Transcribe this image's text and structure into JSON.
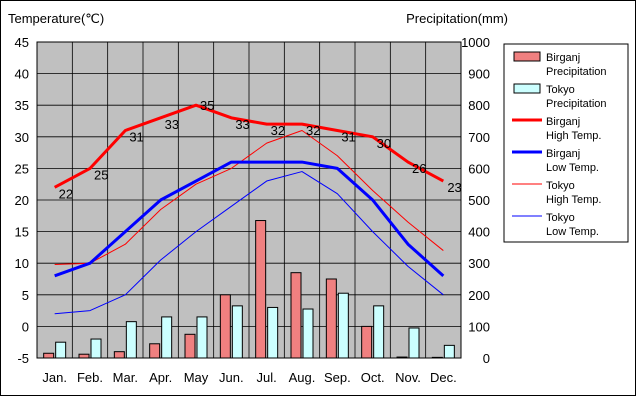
{
  "chart_data": {
    "type": "bar+line",
    "left_axis_title": "Temperature(℃)",
    "right_axis_title": "Precipitation(mm)",
    "categories": [
      "Jan.",
      "Feb.",
      "Mar.",
      "Apr.",
      "May",
      "Jun.",
      "Jul.",
      "Aug.",
      "Sep.",
      "Oct.",
      "Nov.",
      "Dec."
    ],
    "left_axis": {
      "min": -5,
      "max": 45,
      "step": 5,
      "ticks": [
        "-5",
        "0",
        "5",
        "10",
        "15",
        "20",
        "25",
        "30",
        "35",
        "40",
        "45"
      ]
    },
    "right_axis": {
      "min": 0,
      "max": 1000,
      "step": 100,
      "ticks": [
        "0",
        "100",
        "200",
        "300",
        "400",
        "500",
        "600",
        "700",
        "800",
        "900",
        "1000"
      ]
    },
    "grid": true,
    "plot_background": "#c0c0c0",
    "bar_series": [
      {
        "name": "Birganj\nPrecipitation",
        "color": "#f08080",
        "values": [
          15,
          12,
          20,
          45,
          75,
          200,
          435,
          270,
          250,
          100,
          3,
          2
        ]
      },
      {
        "name": "Tokyo\nPrecipitation",
        "color": "#ccffff",
        "values": [
          50,
          60,
          115,
          130,
          130,
          165,
          160,
          155,
          205,
          165,
          95,
          40
        ]
      }
    ],
    "line_series": [
      {
        "name": "Birganj\nHigh Temp.",
        "color": "#ff0000",
        "width": 3,
        "values": [
          22,
          25,
          31,
          33,
          35,
          33,
          32,
          32,
          31,
          30,
          26,
          23
        ],
        "labels": [
          "22",
          "25",
          "31",
          "33",
          "35",
          "33",
          "32",
          "32",
          "31",
          "30",
          "26",
          "23"
        ]
      },
      {
        "name": "Birganj\nLow Temp.",
        "color": "#0000ff",
        "width": 3,
        "values": [
          8,
          10,
          15,
          20,
          23,
          26,
          26,
          26,
          25,
          20,
          13,
          8
        ]
      },
      {
        "name": "Tokyo\nHigh Temp.",
        "color": "#ff0000",
        "width": 1,
        "values": [
          9.8,
          10,
          13,
          18.5,
          22.5,
          25,
          29,
          31,
          27,
          21.5,
          16.5,
          12
        ]
      },
      {
        "name": "Tokyo\nLow Temp.",
        "color": "#0000ff",
        "width": 1,
        "values": [
          2,
          2.5,
          5,
          10.5,
          15,
          19,
          23,
          24.5,
          21,
          15,
          9.5,
          5
        ]
      }
    ]
  }
}
